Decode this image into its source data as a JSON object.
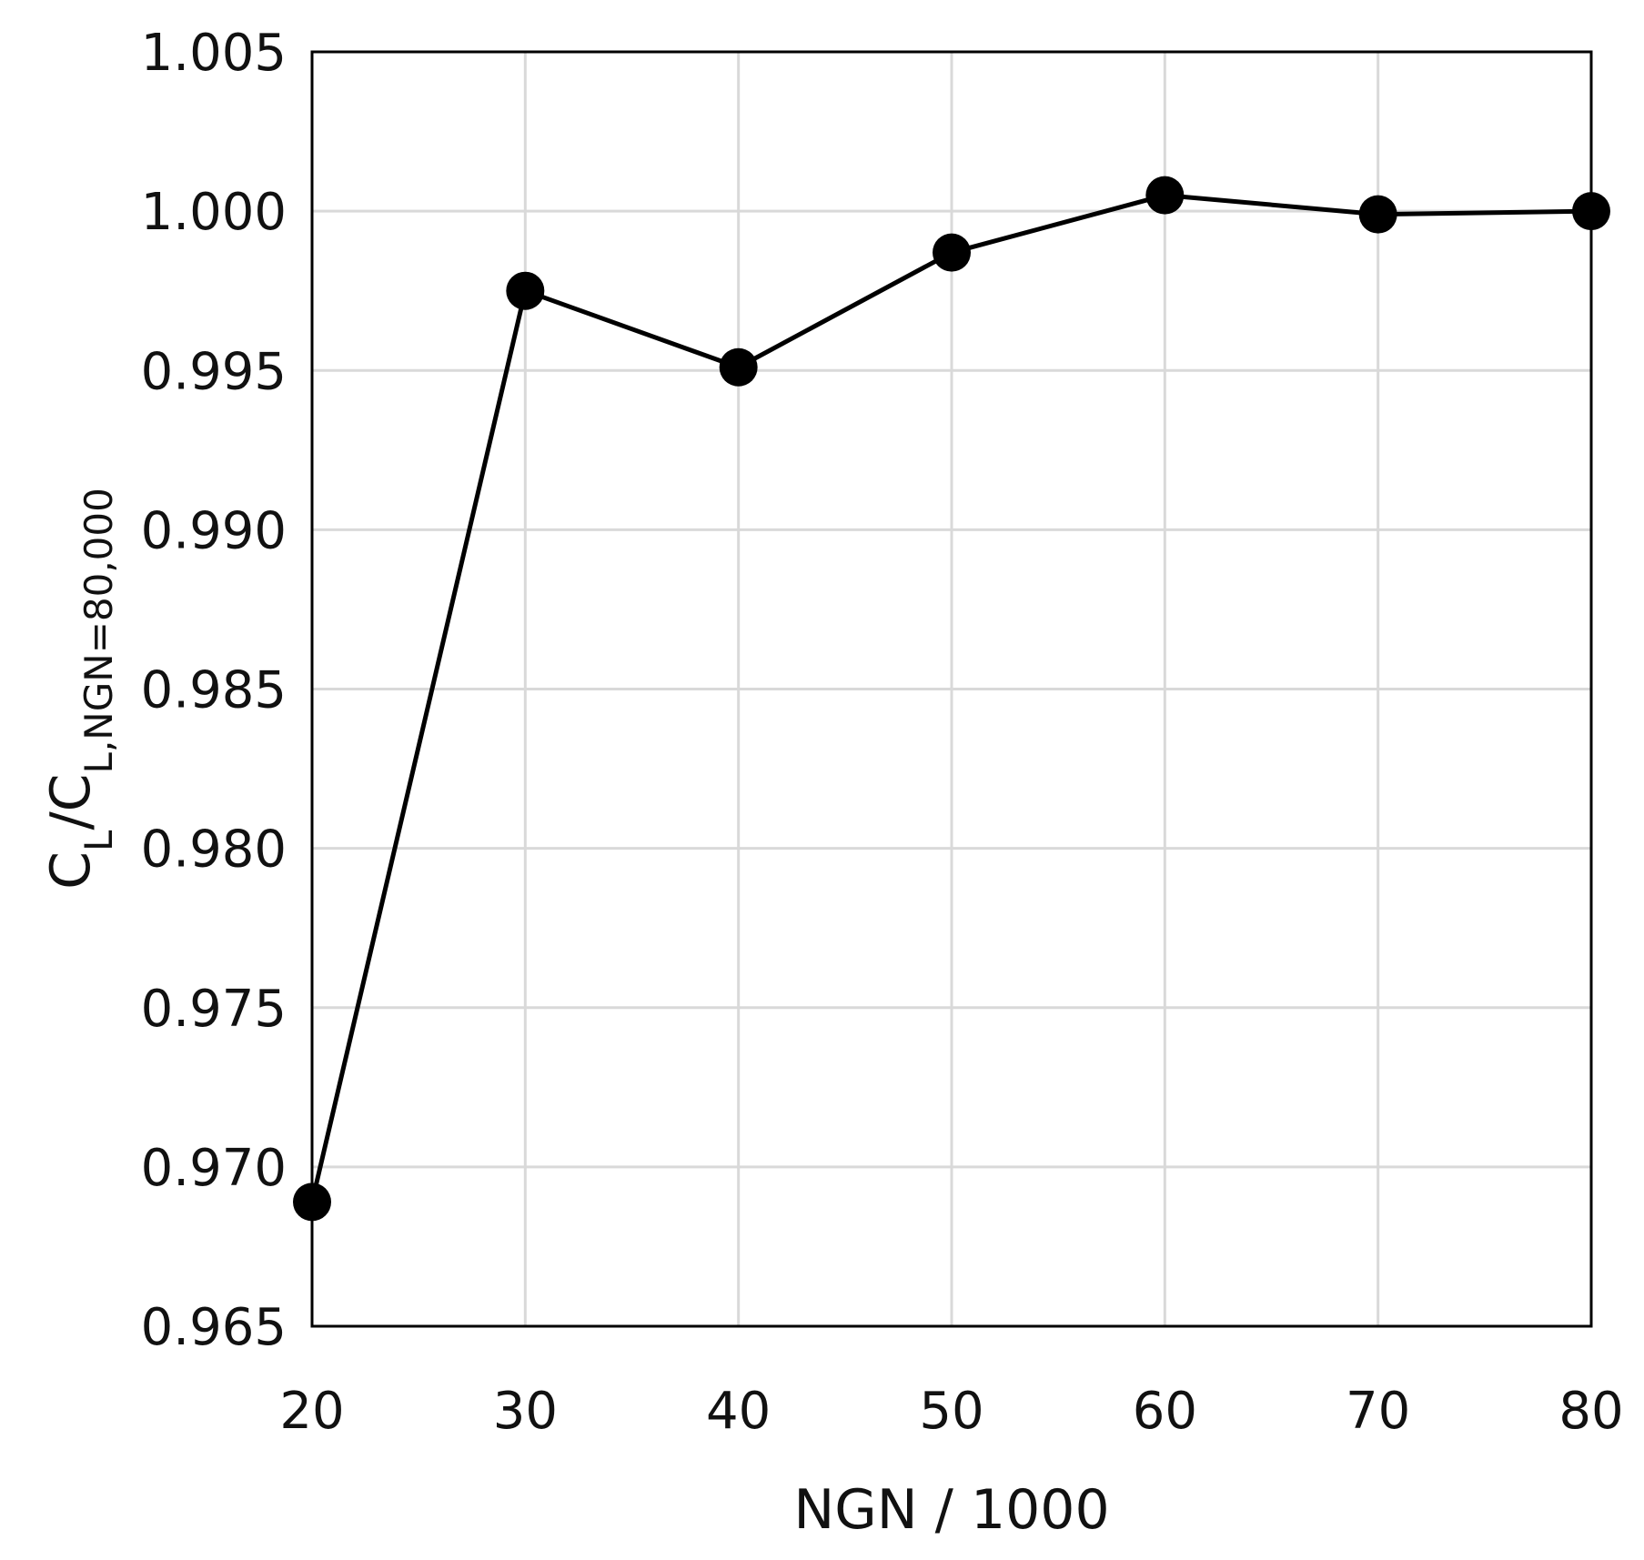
{
  "chart_data": {
    "type": "line",
    "xlabel": "NGN / 1000",
    "ylabel_main": "C",
    "ylabel_sub1": "L",
    "ylabel_slash": "/C",
    "ylabel_sub2": "L,NGN=80,000",
    "x_ticks": [
      "20",
      "30",
      "40",
      "50",
      "60",
      "70",
      "80"
    ],
    "y_ticks": [
      "0.965",
      "0.970",
      "0.975",
      "0.980",
      "0.985",
      "0.990",
      "0.995",
      "1.000",
      "1.005"
    ],
    "xlim": [
      20,
      80
    ],
    "ylim": [
      0.965,
      1.005
    ],
    "grid": true,
    "series": [
      {
        "x": [
          20,
          30,
          40,
          50,
          60,
          70,
          80
        ],
        "y": [
          0.9689,
          0.9975,
          0.9951,
          0.9987,
          1.0005,
          0.9999,
          1.0
        ]
      }
    ]
  }
}
